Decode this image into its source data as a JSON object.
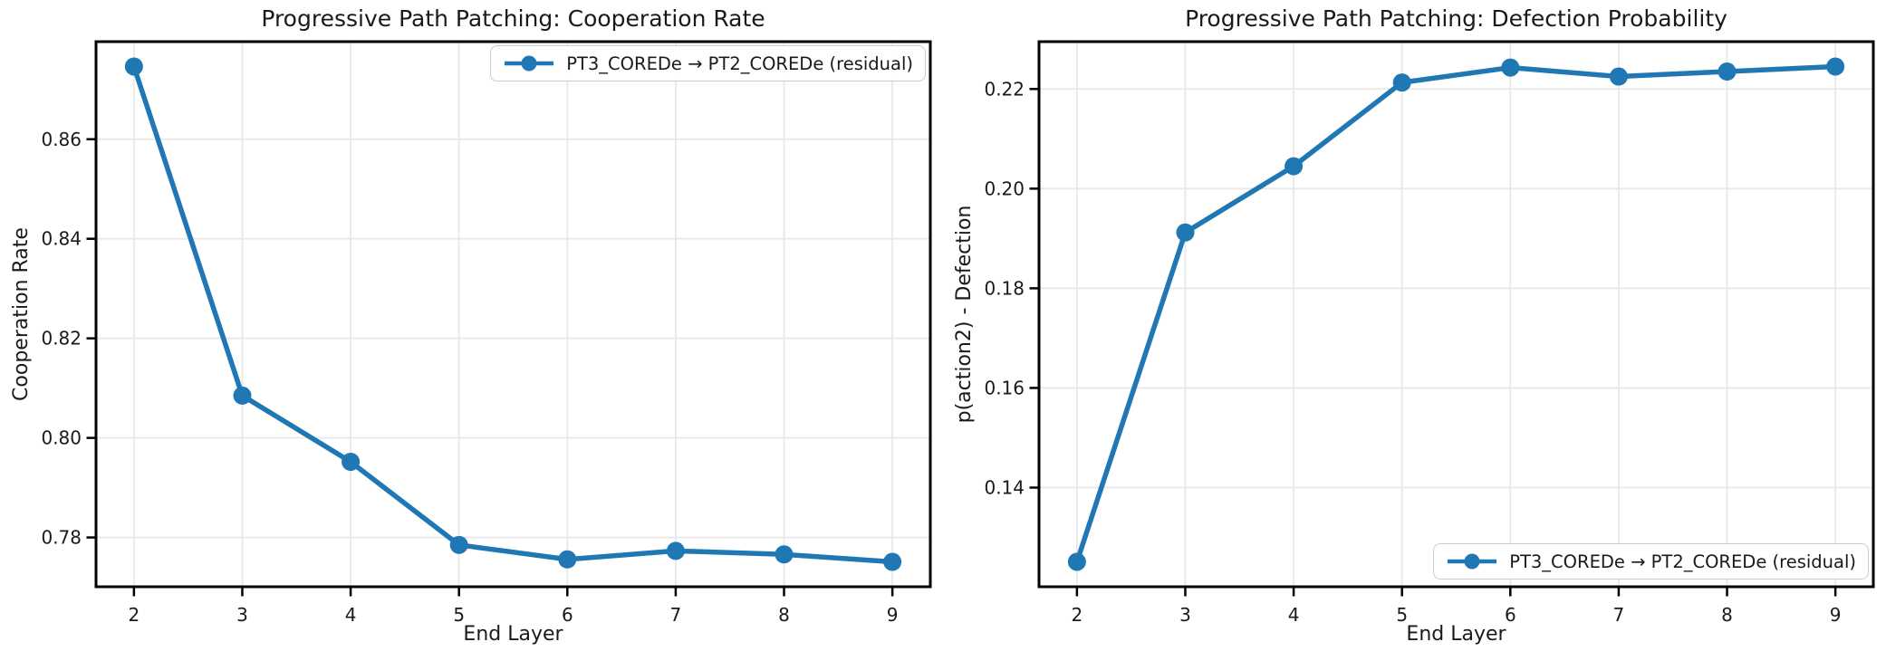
{
  "chart_data": [
    {
      "type": "line",
      "title": "Progressive Path Patching: Cooperation Rate",
      "xlabel": "End Layer",
      "ylabel": "Cooperation Rate",
      "series_name": "PT3_COREDe → PT2_COREDe (residual)",
      "x": [
        2,
        3,
        4,
        5,
        6,
        7,
        8,
        9
      ],
      "values": [
        0.8746,
        0.8085,
        0.7952,
        0.7785,
        0.7756,
        0.7773,
        0.7766,
        0.7751
      ],
      "xticks": [
        2,
        3,
        4,
        5,
        6,
        7,
        8,
        9
      ],
      "yticks": [
        0.78,
        0.8,
        0.82,
        0.84,
        0.86
      ],
      "ytick_labels": [
        "0.78",
        "0.80",
        "0.82",
        "0.84",
        "0.86"
      ],
      "xlim": [
        1.65,
        9.35
      ],
      "ylim": [
        0.7701,
        0.8796
      ],
      "grid": true,
      "legend_position": "upper right",
      "line_color": "#1f77b4"
    },
    {
      "type": "line",
      "title": "Progressive Path Patching: Defection Probability",
      "xlabel": "End Layer",
      "ylabel": "p(action2) - Defection",
      "series_name": "PT3_COREDe → PT2_COREDe (residual)",
      "x": [
        2,
        3,
        4,
        5,
        6,
        7,
        8,
        9
      ],
      "values": [
        0.1251,
        0.1912,
        0.2045,
        0.2213,
        0.2243,
        0.2225,
        0.2235,
        0.2245
      ],
      "xticks": [
        2,
        3,
        4,
        5,
        6,
        7,
        8,
        9
      ],
      "yticks": [
        0.14,
        0.16,
        0.18,
        0.2,
        0.22
      ],
      "ytick_labels": [
        "0.14",
        "0.16",
        "0.18",
        "0.20",
        "0.22"
      ],
      "xlim": [
        1.65,
        9.35
      ],
      "ylim": [
        0.1201,
        0.2295
      ],
      "grid": true,
      "legend_position": "lower right",
      "line_color": "#1f77b4"
    }
  ],
  "style": {
    "grid_color": "#e8e8e8",
    "spine_color": "#000000",
    "background": "#ffffff"
  }
}
